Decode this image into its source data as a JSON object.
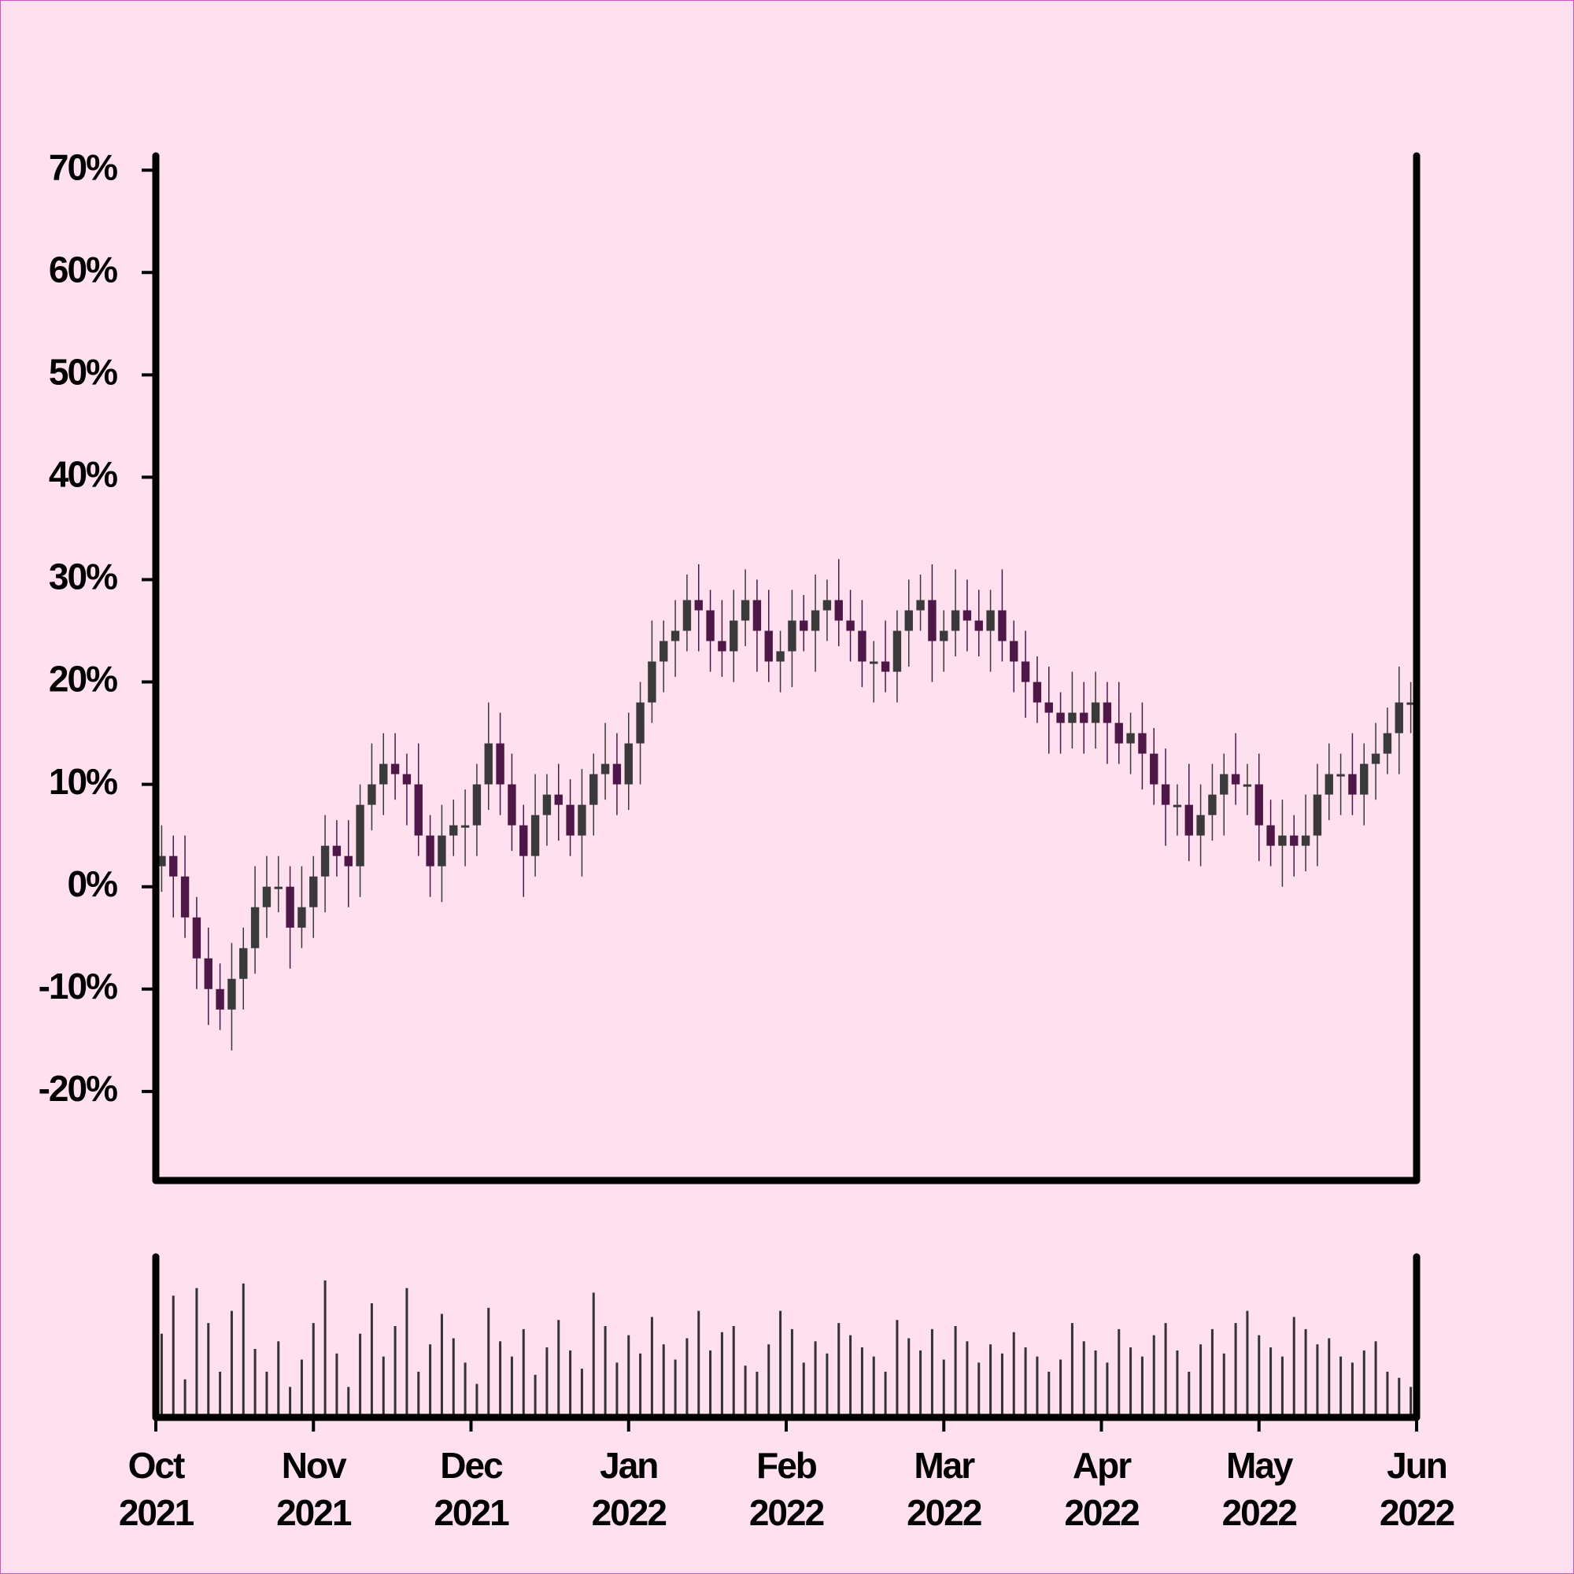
{
  "chart_data": {
    "type": "candlestick",
    "categories": [
      "Oct 2021",
      "Nov 2021",
      "Dec 2021",
      "Jan 2022",
      "Feb 2022",
      "Mar 2022",
      "Apr 2022",
      "May 2022",
      "Jun 2022"
    ],
    "open": [
      2,
      3,
      1,
      -3,
      -7,
      -10,
      -12,
      -9,
      -6,
      -2,
      0,
      0,
      -4,
      -2,
      1,
      4,
      3,
      2,
      8,
      10,
      12,
      11,
      10,
      5,
      2,
      5,
      6,
      6,
      10,
      14,
      10,
      6,
      3,
      7,
      9,
      8,
      5,
      8,
      11,
      12,
      10,
      14,
      18,
      22,
      24,
      25,
      28,
      27,
      24,
      23,
      26,
      28,
      25,
      22,
      23,
      26,
      25,
      27,
      28,
      26,
      25,
      22,
      22,
      21,
      25,
      27,
      28,
      24,
      25,
      27,
      26,
      25,
      27,
      24,
      22,
      20,
      18,
      17,
      16,
      17,
      16,
      18,
      16,
      14,
      15,
      13,
      10,
      8,
      8,
      5,
      7,
      9,
      11,
      10,
      10,
      6,
      4,
      5,
      4,
      5,
      9,
      11,
      11,
      9,
      12,
      13,
      15,
      18
    ],
    "high": [
      6,
      5,
      5,
      -1,
      -4,
      -7.5,
      -5.5,
      -4,
      2,
      3,
      3,
      2,
      2,
      3,
      7,
      6.5,
      6.5,
      10,
      14,
      15,
      15,
      13,
      14,
      7,
      8,
      8.5,
      9.5,
      12,
      18,
      17,
      13,
      8,
      11,
      11,
      12,
      10.5,
      11.5,
      13,
      16,
      15,
      17,
      20,
      26,
      26,
      28,
      30.5,
      31.5,
      29,
      28,
      29,
      31,
      30,
      29,
      25,
      29,
      28.5,
      30.5,
      30,
      32,
      29,
      28,
      24,
      26,
      27,
      30,
      30.5,
      31.5,
      27,
      31,
      30,
      29,
      29,
      31,
      26,
      25,
      22.5,
      21.5,
      19,
      21,
      20,
      21,
      20,
      20,
      17,
      18,
      15.5,
      13.5,
      10,
      12,
      10,
      12,
      13,
      15,
      12,
      13,
      8.5,
      8.5,
      7,
      9,
      12,
      14,
      13,
      15,
      14,
      16,
      17.5,
      21.5,
      20
    ],
    "low": [
      -0.5,
      -3,
      -5,
      -10,
      -13.5,
      -14,
      -16,
      -12,
      -8.5,
      -5,
      -2.5,
      -8,
      -6,
      -5,
      -2.5,
      1,
      -2,
      -1,
      5.5,
      7,
      8.5,
      6,
      3,
      -1,
      -1.5,
      3,
      2,
      3,
      7.5,
      7,
      3.5,
      -1,
      1,
      4,
      4.5,
      3,
      1,
      5,
      8.5,
      7,
      7.5,
      10,
      16,
      19,
      20.5,
      23,
      23,
      21,
      20.5,
      20,
      23.5,
      21,
      20,
      19,
      19.5,
      23,
      21,
      24,
      23.5,
      22,
      19.5,
      18,
      19,
      18,
      21.5,
      25,
      20,
      21,
      22.5,
      23,
      22.5,
      21,
      22,
      19,
      16.5,
      16,
      13,
      13,
      13.5,
      13,
      13.5,
      12,
      12,
      11,
      9.5,
      8,
      4,
      5,
      2.5,
      2,
      4.5,
      5,
      8,
      7,
      2.5,
      2,
      0,
      1,
      1.5,
      2,
      6.5,
      7,
      7,
      6,
      8.5,
      11,
      11,
      15
    ],
    "close": [
      3,
      1,
      -3,
      -7,
      -10,
      -12,
      -9,
      -6,
      -2,
      0,
      0,
      -4,
      -2,
      1,
      4,
      3,
      2,
      8,
      10,
      12,
      11,
      10,
      5,
      2,
      5,
      6,
      6,
      10,
      14,
      10,
      6,
      3,
      7,
      9,
      8,
      5,
      8,
      11,
      12,
      10,
      14,
      18,
      22,
      24,
      25,
      28,
      27,
      24,
      23,
      26,
      28,
      25,
      22,
      23,
      26,
      25,
      27,
      28,
      26,
      25,
      22,
      22,
      21,
      25,
      27,
      28,
      24,
      25,
      27,
      26,
      25,
      27,
      24,
      22,
      20,
      18,
      17,
      16,
      17,
      16,
      18,
      16,
      14,
      15,
      13,
      10,
      8,
      8,
      5,
      7,
      9,
      11,
      10,
      10,
      6,
      4,
      5,
      4,
      5,
      9,
      11,
      11,
      9,
      12,
      13,
      15,
      18,
      18
    ],
    "volume": [
      55,
      80,
      25,
      85,
      62,
      30,
      70,
      88,
      45,
      30,
      50,
      20,
      38,
      62,
      90,
      42,
      20,
      55,
      75,
      40,
      60,
      85,
      30,
      48,
      68,
      52,
      36,
      22,
      72,
      50,
      40,
      58,
      28,
      46,
      64,
      44,
      32,
      82,
      60,
      36,
      54,
      42,
      66,
      48,
      38,
      52,
      70,
      44,
      56,
      60,
      34,
      30,
      48,
      70,
      58,
      36,
      50,
      42,
      62,
      54,
      46,
      40,
      30,
      64,
      52,
      44,
      58,
      38,
      60,
      50,
      36,
      48,
      42,
      56,
      46,
      40,
      30,
      38,
      62,
      50,
      44,
      36,
      58,
      46,
      40,
      54,
      62,
      44,
      30,
      48,
      58,
      42,
      62,
      70,
      54,
      46,
      40,
      66,
      58,
      48,
      52,
      40,
      36,
      44,
      50,
      30,
      26,
      20
    ],
    "ylim": [
      -28.7,
      71.4
    ],
    "yticks": [
      {
        "value": -20,
        "label": "-20%"
      },
      {
        "value": -10,
        "label": "-10%"
      },
      {
        "value": 0,
        "label": "0%"
      },
      {
        "value": 10,
        "label": "10%"
      },
      {
        "value": 20,
        "label": "20%"
      },
      {
        "value": 30,
        "label": "30%"
      },
      {
        "value": 40,
        "label": "40%"
      },
      {
        "value": 50,
        "label": "50%"
      },
      {
        "value": 60,
        "label": "60%"
      },
      {
        "value": 70,
        "label": "70%"
      }
    ],
    "up_color": "#3a3a3a",
    "down_color": "#4d1848",
    "volume_color": "#333333"
  }
}
